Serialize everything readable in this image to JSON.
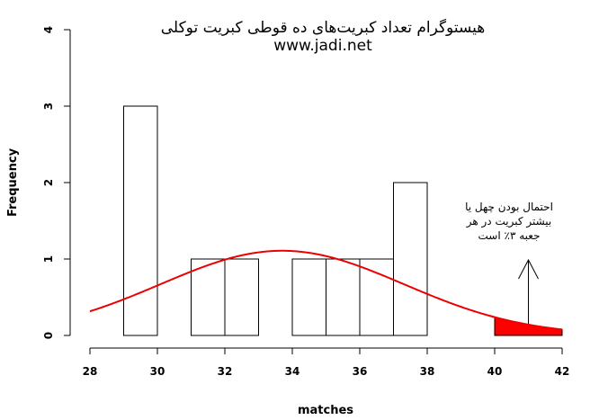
{
  "chart_data": {
    "type": "bar",
    "title": "هیستوگرام تعداد کبریت‌های ده قوطی کبریت توکلی",
    "subtitle": "www.jadi.net",
    "xlabel": "matches",
    "ylabel": "Frequency",
    "xlim": [
      28,
      42
    ],
    "ylim": [
      0,
      4
    ],
    "x_ticks": [
      "28",
      "30",
      "32",
      "34",
      "36",
      "38",
      "40",
      "42"
    ],
    "y_ticks": [
      "0",
      "1",
      "2",
      "3",
      "4"
    ],
    "bins": [
      {
        "from": 29,
        "to": 30,
        "value": 3
      },
      {
        "from": 30,
        "to": 31,
        "value": 0
      },
      {
        "from": 31,
        "to": 32,
        "value": 1
      },
      {
        "from": 32,
        "to": 33,
        "value": 1
      },
      {
        "from": 33,
        "to": 34,
        "value": 0
      },
      {
        "from": 34,
        "to": 35,
        "value": 1
      },
      {
        "from": 35,
        "to": 36,
        "value": 1
      },
      {
        "from": 36,
        "to": 37,
        "value": 1
      },
      {
        "from": 37,
        "to": 38,
        "value": 2
      }
    ],
    "normal_curve": {
      "mean": 33.7,
      "sd": 3.6,
      "n": 10,
      "bin_width": 1,
      "shaded_from": 40,
      "color": "#ee0000",
      "fill": "#ff0000"
    },
    "annotation": {
      "lines": [
        "احتمال بودن چهل یا",
        "بیشتر کبریت در هر",
        "جعبه  ۳٪ است"
      ],
      "arrow_x": 41
    },
    "grid": false
  }
}
